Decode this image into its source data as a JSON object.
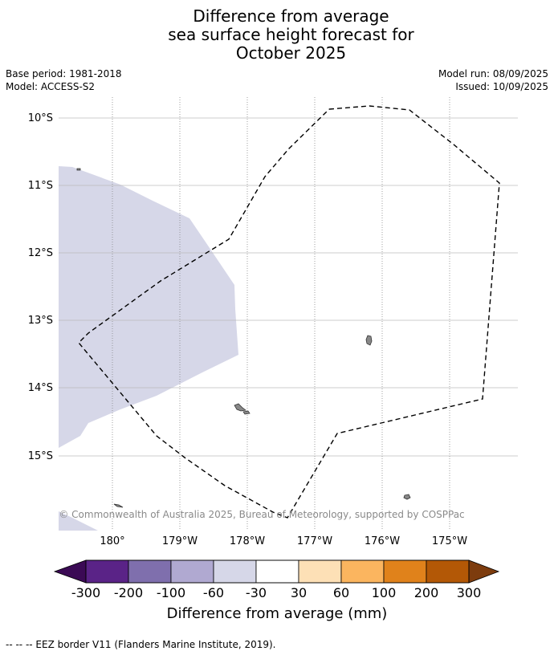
{
  "header": {
    "title_lines": [
      "Difference from average",
      "sea surface height forecast for",
      "October 2025"
    ],
    "base_period": "Base period: 1981-2018",
    "model": "Model: ACCESS-S2",
    "model_run": "Model run: 08/09/2025",
    "issued": "Issued: 10/09/2025"
  },
  "map": {
    "longitude_labels": [
      "180°",
      "179°W",
      "178°W",
      "177°W",
      "176°W",
      "175°W"
    ],
    "latitude_labels": [
      "10°S",
      "11°S",
      "12°S",
      "13°S",
      "14°S",
      "15°S"
    ],
    "copyright": "© Commonwealth of Australia 2025, Bureau of Meteorology, supported by COSPPac",
    "colors": {
      "anomaly_fill": "#d6d7e8",
      "land": "#888888",
      "gridline": "#bbbbbb"
    }
  },
  "colorbar": {
    "tick_labels": [
      "-300",
      "-200",
      "-100",
      "-60",
      "-30",
      "30",
      "60",
      "100",
      "200",
      "300"
    ],
    "title": "Difference from average (mm)",
    "colors": {
      "low_extend": "#3b0a55",
      "bins": [
        "#5a2387",
        "#7f6fad",
        "#b0a9d1",
        "#d6d7e8",
        "#ffffff",
        "#fde0b6",
        "#fbb55f",
        "#e0821b",
        "#b35806"
      ],
      "high_extend": "#7d3c0e"
    }
  },
  "legend": {
    "eez_label": "--  --  -- EEZ border V11 (Flanders Marine Institute, 2019)."
  }
}
